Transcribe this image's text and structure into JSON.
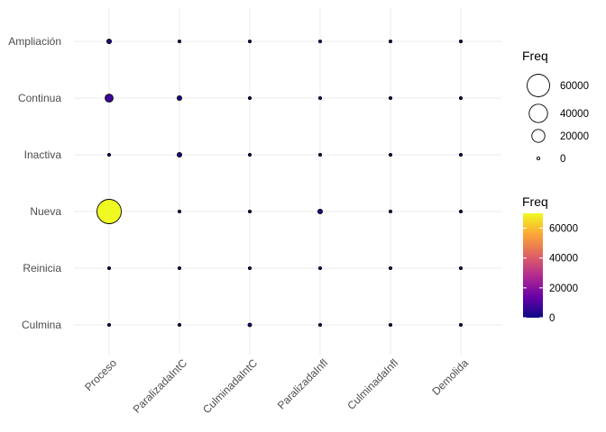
{
  "chart_data": {
    "type": "scatter",
    "subtype": "balloon",
    "title": "",
    "xlabel": "",
    "ylabel": "",
    "x_categories": [
      "Proceso",
      "ParalizadaIntC",
      "CulminadaIntC",
      "ParalizadaInfl",
      "CulminadaInfl",
      "Demolida"
    ],
    "y_categories": [
      "Ampliación",
      "Continua",
      "Inactiva",
      "Nueva",
      "Reinicia",
      "Culmina"
    ],
    "points": [
      {
        "x": "Proceso",
        "y": "Ampliación",
        "freq": 2500
      },
      {
        "x": "ParalizadaIntC",
        "y": "Ampliación",
        "freq": 80
      },
      {
        "x": "CulminadaIntC",
        "y": "Ampliación",
        "freq": 80
      },
      {
        "x": "ParalizadaInfl",
        "y": "Ampliación",
        "freq": 80
      },
      {
        "x": "CulminadaInfl",
        "y": "Ampliación",
        "freq": 80
      },
      {
        "x": "Demolida",
        "y": "Ampliación",
        "freq": 80
      },
      {
        "x": "Proceso",
        "y": "Continua",
        "freq": 7500
      },
      {
        "x": "ParalizadaIntC",
        "y": "Continua",
        "freq": 2500
      },
      {
        "x": "CulminadaIntC",
        "y": "Continua",
        "freq": 100
      },
      {
        "x": "ParalizadaInfl",
        "y": "Continua",
        "freq": 700
      },
      {
        "x": "CulminadaInfl",
        "y": "Continua",
        "freq": 80
      },
      {
        "x": "Demolida",
        "y": "Continua",
        "freq": 120
      },
      {
        "x": "Proceso",
        "y": "Inactiva",
        "freq": 250
      },
      {
        "x": "ParalizadaIntC",
        "y": "Inactiva",
        "freq": 2500
      },
      {
        "x": "CulminadaIntC",
        "y": "Inactiva",
        "freq": 80
      },
      {
        "x": "ParalizadaInfl",
        "y": "Inactiva",
        "freq": 150
      },
      {
        "x": "CulminadaInfl",
        "y": "Inactiva",
        "freq": 80
      },
      {
        "x": "Demolida",
        "y": "Inactiva",
        "freq": 80
      },
      {
        "x": "Proceso",
        "y": "Nueva",
        "freq": 70000
      },
      {
        "x": "ParalizadaIntC",
        "y": "Nueva",
        "freq": 200
      },
      {
        "x": "CulminadaIntC",
        "y": "Nueva",
        "freq": 80
      },
      {
        "x": "ParalizadaInfl",
        "y": "Nueva",
        "freq": 2500
      },
      {
        "x": "CulminadaInfl",
        "y": "Nueva",
        "freq": 80
      },
      {
        "x": "Demolida",
        "y": "Nueva",
        "freq": 80
      },
      {
        "x": "Proceso",
        "y": "Reinicia",
        "freq": 700
      },
      {
        "x": "ParalizadaIntC",
        "y": "Reinicia",
        "freq": 80
      },
      {
        "x": "CulminadaIntC",
        "y": "Reinicia",
        "freq": 80
      },
      {
        "x": "ParalizadaInfl",
        "y": "Reinicia",
        "freq": 80
      },
      {
        "x": "CulminadaInfl",
        "y": "Reinicia",
        "freq": 80
      },
      {
        "x": "Demolida",
        "y": "Reinicia",
        "freq": 80
      },
      {
        "x": "Proceso",
        "y": "Culmina",
        "freq": 250
      },
      {
        "x": "ParalizadaIntC",
        "y": "Culmina",
        "freq": 80
      },
      {
        "x": "CulminadaIntC",
        "y": "Culmina",
        "freq": 1500
      },
      {
        "x": "ParalizadaInfl",
        "y": "Culmina",
        "freq": 80
      },
      {
        "x": "CulminadaInfl",
        "y": "Culmina",
        "freq": 80
      },
      {
        "x": "Demolida",
        "y": "Culmina",
        "freq": 80
      }
    ],
    "size_legend": {
      "title": "Freq",
      "breaks": [
        60000,
        40000,
        20000,
        0
      ],
      "labels": [
        "60000",
        "40000",
        "20000",
        "0"
      ]
    },
    "color_legend": {
      "title": "Freq",
      "breaks": [
        60000,
        40000,
        20000,
        0
      ],
      "labels": [
        "60000",
        "40000",
        "20000",
        "0"
      ],
      "range": [
        0,
        70000
      ],
      "palette": [
        "#0d0887",
        "#6a00a8",
        "#b12a90",
        "#e16462",
        "#fca636",
        "#f0f921"
      ]
    },
    "freq_range": [
      0,
      70000
    ],
    "grid": true,
    "legend_position": "right"
  }
}
